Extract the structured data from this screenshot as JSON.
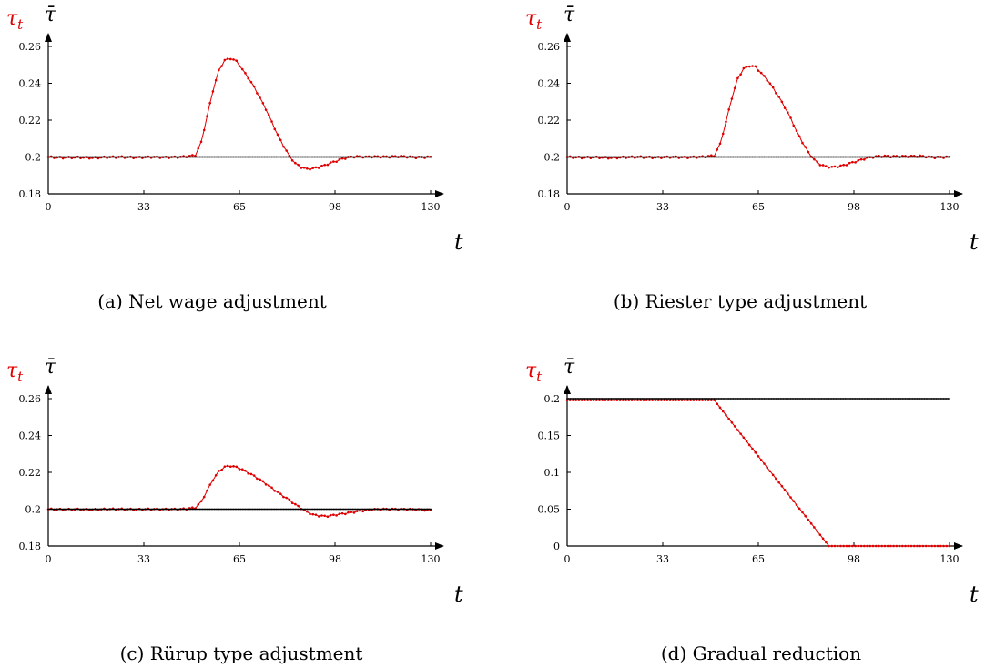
{
  "colors": {
    "tau": "#e00000",
    "tau_bar": "#000000"
  },
  "charts": [
    {
      "type": "line",
      "caption": "(a) Net wage adjustment",
      "xlabel": "t",
      "series_labels": [
        "τ",
        "t",
        "τ̄"
      ],
      "xticks": [
        "0",
        "33",
        "65",
        "98",
        "130"
      ],
      "yticks": [
        "0.18",
        "0.2",
        "0.22",
        "0.24",
        "0.26"
      ],
      "xlim": [
        0,
        130
      ],
      "ylim": [
        0.18,
        0.26
      ],
      "ytick_values": [
        0.18,
        0.2,
        0.22,
        0.24,
        0.26
      ],
      "series": [
        {
          "key": "tau",
          "x": [
            0,
            5,
            10,
            15,
            20,
            25,
            30,
            35,
            40,
            45,
            48,
            50,
            52,
            54,
            56,
            58,
            60,
            62,
            64,
            66,
            68,
            70,
            72,
            74,
            76,
            78,
            80,
            82,
            84,
            86,
            88,
            90,
            92,
            94,
            96,
            98,
            100,
            102,
            104,
            106,
            108,
            110,
            115,
            120,
            125,
            130
          ],
          "y": [
            0.2,
            0.1996,
            0.1998,
            0.1995,
            0.1999,
            0.2,
            0.1997,
            0.2,
            0.1998,
            0.2,
            0.2005,
            0.201,
            0.208,
            0.222,
            0.236,
            0.247,
            0.2525,
            0.2535,
            0.252,
            0.2475,
            0.243,
            0.238,
            0.232,
            0.226,
            0.219,
            0.212,
            0.206,
            0.2005,
            0.1965,
            0.1945,
            0.1935,
            0.1938,
            0.1945,
            0.1955,
            0.1968,
            0.1978,
            0.199,
            0.1998,
            0.2002,
            0.2003,
            0.2,
            0.2002,
            0.2001,
            0.2004,
            0.1998,
            0.2
          ]
        },
        {
          "key": "tau_bar",
          "x": [
            0,
            130
          ],
          "y": [
            0.2,
            0.2
          ]
        }
      ]
    },
    {
      "type": "line",
      "caption": "(b) Riester type adjustment",
      "xlabel": "t",
      "series_labels": [
        "τ",
        "t",
        "τ̄"
      ],
      "xticks": [
        "0",
        "33",
        "65",
        "98",
        "130"
      ],
      "yticks": [
        "0.18",
        "0.2",
        "0.22",
        "0.24",
        "0.26"
      ],
      "xlim": [
        0,
        130
      ],
      "ylim": [
        0.18,
        0.26
      ],
      "ytick_values": [
        0.18,
        0.2,
        0.22,
        0.24,
        0.26
      ],
      "series": [
        {
          "key": "tau",
          "x": [
            0,
            5,
            10,
            15,
            20,
            25,
            30,
            35,
            40,
            45,
            48,
            50,
            52,
            54,
            56,
            58,
            60,
            62,
            64,
            66,
            68,
            70,
            72,
            74,
            76,
            78,
            80,
            82,
            84,
            86,
            88,
            90,
            92,
            94,
            96,
            98,
            100,
            102,
            104,
            106,
            108,
            110,
            115,
            120,
            125,
            130
          ],
          "y": [
            0.2,
            0.1997,
            0.1998,
            0.1995,
            0.1999,
            0.2,
            0.1997,
            0.2,
            0.1998,
            0.2,
            0.2004,
            0.2008,
            0.207,
            0.219,
            0.232,
            0.2425,
            0.248,
            0.2495,
            0.249,
            0.2455,
            0.242,
            0.2375,
            0.2325,
            0.227,
            0.221,
            0.214,
            0.208,
            0.2025,
            0.1985,
            0.196,
            0.1948,
            0.1945,
            0.1948,
            0.1955,
            0.1965,
            0.1975,
            0.1985,
            0.1995,
            0.2,
            0.2004,
            0.2005,
            0.2003,
            0.2004,
            0.2005,
            0.1998,
            0.2
          ]
        },
        {
          "key": "tau_bar",
          "x": [
            0,
            130
          ],
          "y": [
            0.2,
            0.2
          ]
        }
      ]
    },
    {
      "type": "line",
      "caption": "(c) Rürup type adjustment",
      "xlabel": "t",
      "series_labels": [
        "τ",
        "t",
        "τ̄"
      ],
      "xticks": [
        "0",
        "33",
        "65",
        "98",
        "130"
      ],
      "yticks": [
        "0.18",
        "0.2",
        "0.22",
        "0.24",
        "0.26"
      ],
      "xlim": [
        0,
        130
      ],
      "ylim": [
        0.18,
        0.26
      ],
      "ytick_values": [
        0.18,
        0.2,
        0.22,
        0.24,
        0.26
      ],
      "series": [
        {
          "key": "tau",
          "x": [
            0,
            5,
            10,
            15,
            20,
            25,
            30,
            35,
            40,
            45,
            48,
            50,
            52,
            54,
            56,
            58,
            60,
            62,
            64,
            66,
            68,
            70,
            72,
            74,
            76,
            78,
            80,
            82,
            84,
            86,
            88,
            90,
            92,
            94,
            96,
            98,
            100,
            102,
            104,
            106,
            108,
            110,
            115,
            120,
            125,
            130
          ],
          "y": [
            0.2,
            0.1998,
            0.1999,
            0.1997,
            0.2,
            0.2,
            0.1998,
            0.2,
            0.1999,
            0.2,
            0.2004,
            0.2008,
            0.204,
            0.21,
            0.216,
            0.2205,
            0.223,
            0.2235,
            0.2228,
            0.2215,
            0.2198,
            0.218,
            0.216,
            0.2138,
            0.2115,
            0.2092,
            0.207,
            0.205,
            0.2025,
            0.2005,
            0.1985,
            0.197,
            0.1965,
            0.1962,
            0.1965,
            0.197,
            0.1975,
            0.198,
            0.1985,
            0.199,
            0.1995,
            0.1998,
            0.2,
            0.2,
            0.1998,
            0.1995
          ]
        },
        {
          "key": "tau_bar",
          "x": [
            0,
            130
          ],
          "y": [
            0.2,
            0.2
          ]
        }
      ]
    },
    {
      "type": "line",
      "caption": "(d) Gradual reduction",
      "xlabel": "t",
      "series_labels": [
        "τ",
        "t",
        "τ̄"
      ],
      "xticks": [
        "0",
        "33",
        "65",
        "98",
        "130"
      ],
      "yticks": [
        "0",
        "0.05",
        "0.1",
        "0.15",
        "0.2"
      ],
      "xlim": [
        0,
        130
      ],
      "ylim": [
        0,
        0.2
      ],
      "ytick_values": [
        0,
        0.05,
        0.1,
        0.15,
        0.2
      ],
      "series": [
        {
          "key": "tau",
          "x": [
            0,
            50,
            89,
            130
          ],
          "y": [
            0.198,
            0.198,
            0,
            0
          ]
        },
        {
          "key": "tau_bar",
          "x": [
            0,
            130
          ],
          "y": [
            0.2,
            0.2
          ]
        }
      ]
    }
  ]
}
